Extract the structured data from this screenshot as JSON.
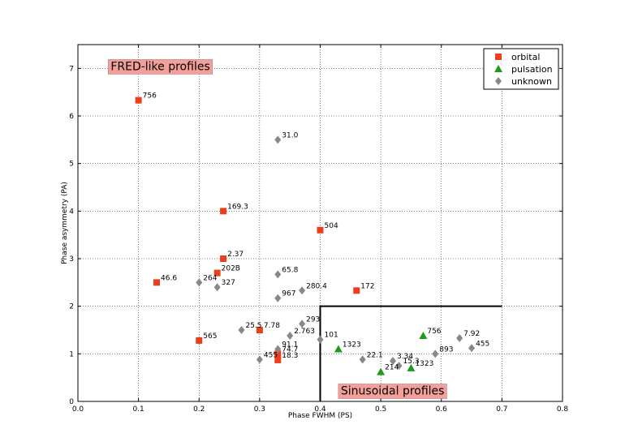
{
  "chart_data": {
    "type": "scatter",
    "xlabel": "Phase FWHM (PS)",
    "ylabel": "Phase asymmetry (PA)",
    "xlim": [
      0.0,
      0.8
    ],
    "ylim": [
      0,
      7.5
    ],
    "x_ticks": [
      "0.0",
      "0.1",
      "0.2",
      "0.3",
      "0.4",
      "0.5",
      "0.6",
      "0.7",
      "0.8"
    ],
    "y_ticks": [
      "0",
      "1",
      "2",
      "3",
      "4",
      "5",
      "6",
      "7"
    ],
    "grid": true,
    "legend_position": "top-right",
    "annotations": [
      {
        "text": "FRED-like profiles",
        "x": 0.05,
        "y": 7.05
      },
      {
        "text": "Sinusoidal profiles",
        "x": 0.43,
        "y": 0.23
      }
    ],
    "region_boundary": [
      [
        0.4,
        0
      ],
      [
        0.4,
        2.0
      ],
      [
        0.7,
        2.0
      ]
    ],
    "series": [
      {
        "name": "orbital",
        "marker": "square",
        "color": "#e8401c",
        "points": [
          {
            "x": 0.1,
            "y": 6.33,
            "label": "756"
          },
          {
            "x": 0.24,
            "y": 4.0,
            "label": "169.3"
          },
          {
            "x": 0.4,
            "y": 3.6,
            "label": "504"
          },
          {
            "x": 0.24,
            "y": 3.0,
            "label": "2.37"
          },
          {
            "x": 0.23,
            "y": 2.7,
            "label": "202B"
          },
          {
            "x": 0.13,
            "y": 2.5,
            "label": "46.6"
          },
          {
            "x": 0.46,
            "y": 2.33,
            "label": "172"
          },
          {
            "x": 0.2,
            "y": 1.28,
            "label": "565"
          },
          {
            "x": 0.3,
            "y": 1.5,
            "label": "7.78"
          },
          {
            "x": 0.33,
            "y": 1.0,
            "label": "74.7"
          },
          {
            "x": 0.33,
            "y": 0.87,
            "label": "18.3"
          }
        ]
      },
      {
        "name": "pulsation",
        "marker": "triangle",
        "color": "#1e9a1e",
        "points": [
          {
            "x": 0.57,
            "y": 1.38,
            "label": "756"
          },
          {
            "x": 0.43,
            "y": 1.1,
            "label": "1323"
          },
          {
            "x": 0.55,
            "y": 0.7,
            "label": "1323"
          },
          {
            "x": 0.5,
            "y": 0.62,
            "label": "214"
          }
        ]
      },
      {
        "name": "unknown",
        "marker": "diamond",
        "color": "#888888",
        "points": [
          {
            "x": 0.33,
            "y": 5.5,
            "label": "31.0"
          },
          {
            "x": 0.33,
            "y": 2.67,
            "label": "65.8"
          },
          {
            "x": 0.2,
            "y": 2.5,
            "label": "264"
          },
          {
            "x": 0.23,
            "y": 2.4,
            "label": "327"
          },
          {
            "x": 0.37,
            "y": 2.33,
            "label": "280.4"
          },
          {
            "x": 0.33,
            "y": 2.17,
            "label": "967"
          },
          {
            "x": 0.37,
            "y": 1.63,
            "label": "293"
          },
          {
            "x": 0.27,
            "y": 1.5,
            "label": "25.5"
          },
          {
            "x": 0.35,
            "y": 1.38,
            "label": "2.763"
          },
          {
            "x": 0.4,
            "y": 1.3,
            "label": "101"
          },
          {
            "x": 0.33,
            "y": 1.1,
            "label": "91.1"
          },
          {
            "x": 0.3,
            "y": 0.88,
            "label": "455"
          },
          {
            "x": 0.47,
            "y": 0.88,
            "label": "22.1"
          },
          {
            "x": 0.52,
            "y": 0.85,
            "label": "3.34"
          },
          {
            "x": 0.53,
            "y": 0.75,
            "label": "15.3"
          },
          {
            "x": 0.59,
            "y": 1.0,
            "label": "893"
          },
          {
            "x": 0.63,
            "y": 1.33,
            "label": "7.92"
          },
          {
            "x": 0.65,
            "y": 1.12,
            "label": "455"
          }
        ]
      }
    ]
  }
}
